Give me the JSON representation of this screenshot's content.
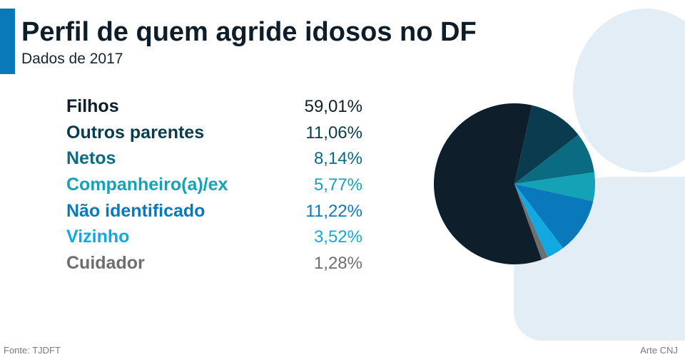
{
  "chart_data": {
    "type": "pie",
    "title": "Perfil de quem agride idosos no DF",
    "subtitle": "Dados de 2017",
    "legend_position": "left",
    "slices": [
      {
        "label": "Filhos",
        "value": 59.01,
        "value_label": "59,01%",
        "color": "#0e1f2b"
      },
      {
        "label": "Outros parentes",
        "value": 11.06,
        "value_label": "11,06%",
        "color": "#0b3b4e"
      },
      {
        "label": "Netos",
        "value": 8.14,
        "value_label": "8,14%",
        "color": "#0a6b81"
      },
      {
        "label": "Companheiro(a)/ex",
        "value": 5.77,
        "value_label": "5,77%",
        "color": "#14a3b6"
      },
      {
        "label": "Não identificado",
        "value": 11.22,
        "value_label": "11,22%",
        "color": "#0a79bb"
      },
      {
        "label": "Vizinho",
        "value": 3.52,
        "value_label": "3,52%",
        "color": "#12a9e2"
      },
      {
        "label": "Cuidador",
        "value": 1.28,
        "value_label": "1,28%",
        "color": "#6e6e6e"
      }
    ]
  },
  "footer": {
    "source": "Fonte: TJDFT",
    "credit": "Arte CNJ"
  },
  "colors": {
    "accent_bar": "#0a79ba",
    "title": "#0d1e2a",
    "subtitle": "#16252f",
    "silhouette": "#e2edf6",
    "footer_text": "#7a7a7a"
  }
}
